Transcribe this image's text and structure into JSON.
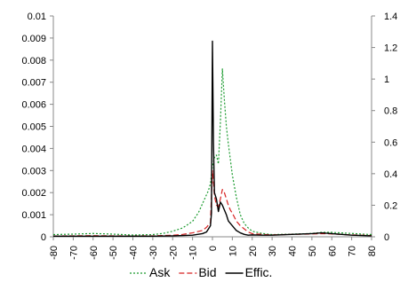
{
  "chart_data": {
    "type": "line",
    "title": "",
    "xlabel": "",
    "ylabel": "",
    "x_ticks": [
      -80,
      -70,
      -60,
      -50,
      -40,
      -30,
      -20,
      -10,
      0,
      10,
      20,
      30,
      40,
      50,
      60,
      70,
      80
    ],
    "x_tick_labels": [
      "-80",
      "-70",
      "-60",
      "-50",
      "-40",
      "-30",
      "-20",
      "-10",
      "0",
      "10",
      "20",
      "30",
      "40",
      "50",
      "60",
      "70",
      "80"
    ],
    "xlim": [
      -80,
      80
    ],
    "y_left_ticks": [
      0,
      0.001,
      0.002,
      0.003,
      0.004,
      0.005,
      0.006,
      0.007,
      0.008,
      0.009,
      0.01
    ],
    "y_left_tick_labels": [
      "0",
      "0.001",
      "0.002",
      "0.003",
      "0.004",
      "0.005",
      "0.006",
      "0.007",
      "0.008",
      "0.009",
      "0.01"
    ],
    "ylim_left": [
      0,
      0.01
    ],
    "y_right_ticks": [
      0,
      0.2,
      0.4,
      0.6,
      0.8,
      1,
      1.2,
      1.4
    ],
    "y_right_tick_labels": [
      "0",
      "0.2",
      "0.4",
      "0.6",
      "0.8",
      "1",
      "1.2",
      "1.4"
    ],
    "ylim_right": [
      0,
      1.4
    ],
    "grid": false,
    "legend_position": "bottom",
    "series": [
      {
        "name": "Ask",
        "axis": "left",
        "color": "#1a9a2e",
        "dash": "dotted",
        "x": [
          -80,
          -70,
          -60,
          -50,
          -40,
          -30,
          -25,
          -20,
          -15,
          -10,
          -7,
          -5,
          -3,
          -2,
          -1,
          0,
          1,
          2,
          3,
          4,
          5,
          6,
          7,
          8,
          9,
          10,
          12,
          14,
          16,
          18,
          20,
          25,
          30,
          40,
          50,
          55,
          60,
          70,
          80
        ],
        "values": [
          0.0001,
          0.00012,
          0.00015,
          0.00012,
          8e-05,
          0.0001,
          0.00015,
          0.00025,
          0.0004,
          0.0007,
          0.0011,
          0.0015,
          0.0019,
          0.0021,
          0.0024,
          0.0032,
          0.0036,
          0.0037,
          0.0033,
          0.0052,
          0.0076,
          0.0062,
          0.005,
          0.0042,
          0.0035,
          0.0028,
          0.0018,
          0.001,
          0.0006,
          0.0004,
          0.00025,
          0.00015,
          0.0001,
          0.00012,
          0.00015,
          0.0002,
          0.0002,
          0.00015,
          0.0001
        ]
      },
      {
        "name": "Bid",
        "axis": "right",
        "color": "#d62020",
        "dash": "dashed",
        "x": [
          -80,
          -70,
          -60,
          -50,
          -40,
          -30,
          -20,
          -15,
          -10,
          -5,
          -3,
          -1,
          0,
          1,
          2,
          3,
          4,
          5,
          6,
          7,
          8,
          9,
          10,
          12,
          14,
          16,
          18,
          20,
          25,
          30,
          40,
          50,
          55,
          60,
          70,
          80
        ],
        "values": [
          0.005,
          0.006,
          0.007,
          0.006,
          0.005,
          0.006,
          0.01,
          0.015,
          0.025,
          0.04,
          0.06,
          0.09,
          0.42,
          0.26,
          0.2,
          0.19,
          0.24,
          0.3,
          0.28,
          0.24,
          0.2,
          0.17,
          0.15,
          0.1,
          0.07,
          0.05,
          0.03,
          0.02,
          0.015,
          0.012,
          0.015,
          0.018,
          0.02,
          0.018,
          0.012,
          0.008
        ]
      },
      {
        "name": "Effic.",
        "axis": "right",
        "color": "#000000",
        "dash": "solid",
        "x": [
          -80,
          -70,
          -60,
          -50,
          -40,
          -30,
          -20,
          -10,
          -5,
          -3,
          -2,
          -1,
          -0.5,
          0,
          0.5,
          1,
          2,
          3,
          4,
          5,
          6,
          7,
          8,
          10,
          12,
          14,
          16,
          18,
          20,
          25,
          30,
          40,
          50,
          55,
          60,
          70,
          80
        ],
        "values": [
          0.004,
          0.004,
          0.004,
          0.004,
          0.004,
          0.004,
          0.006,
          0.01,
          0.02,
          0.03,
          0.05,
          0.07,
          0.15,
          1.24,
          0.6,
          0.28,
          0.24,
          0.16,
          0.22,
          0.2,
          0.17,
          0.14,
          0.1,
          0.07,
          0.04,
          0.025,
          0.015,
          0.01,
          0.012,
          0.01,
          0.01,
          0.015,
          0.02,
          0.025,
          0.02,
          0.01,
          0.006
        ]
      }
    ]
  }
}
